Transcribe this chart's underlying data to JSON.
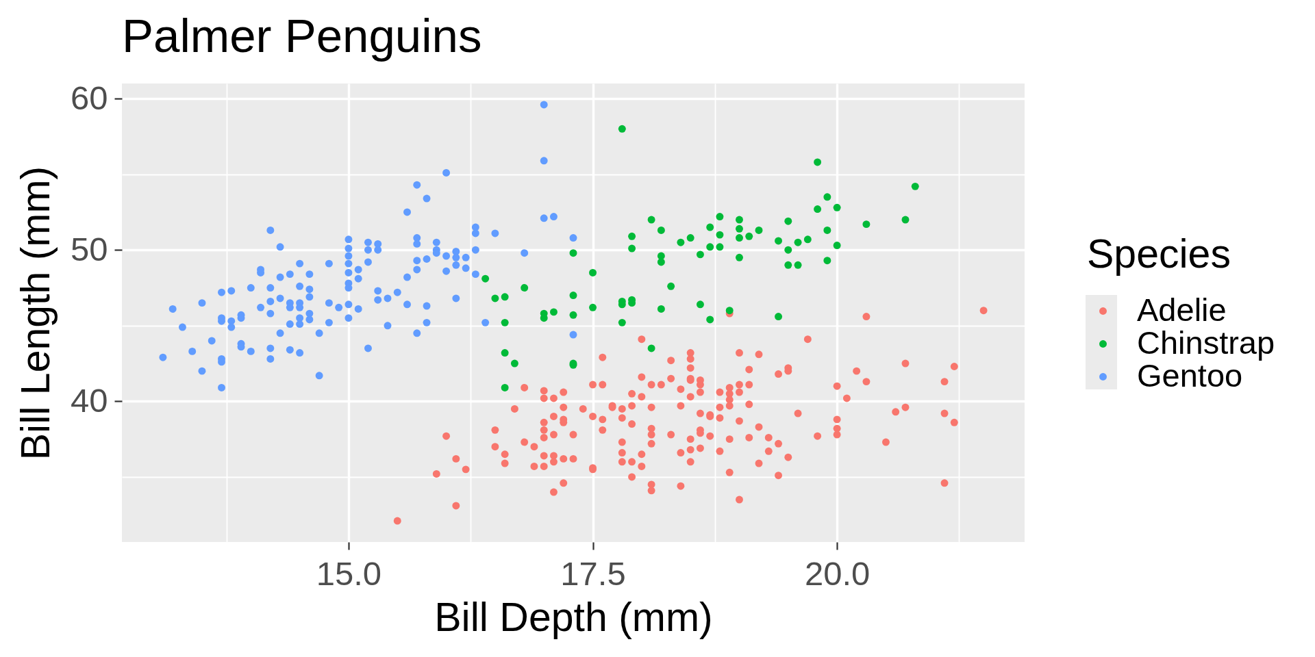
{
  "chart_data": {
    "type": "scatter",
    "title": "Palmer Penguins",
    "xlabel": "Bill Depth (mm)",
    "ylabel": "Bill Length (mm)",
    "legend_title": "Species",
    "xlim": [
      12.68,
      21.92
    ],
    "ylim": [
      30.7,
      61.0
    ],
    "xticks": [
      {
        "value": 13.75,
        "label": null
      },
      {
        "value": 15,
        "label": "15.0"
      },
      {
        "value": 16.25,
        "label": null
      },
      17.5,
      {
        "value": 18.75,
        "label": null
      },
      {
        "value": 20,
        "label": "20.0"
      },
      {
        "value": 21.25,
        "label": null
      }
    ],
    "yticks": [
      {
        "value": 35,
        "label": null
      },
      40,
      {
        "value": 45,
        "label": null
      },
      50,
      {
        "value": 55,
        "label": null
      },
      60
    ],
    "grid": true,
    "legend": "right",
    "marker": "circle",
    "series": [
      {
        "name": "Adelie",
        "color": "#f8766d",
        "x": [
          16.8,
          17.0,
          17.0,
          17.1,
          17.2,
          17.5,
          17.6,
          17.6,
          18.0,
          18.0,
          18.1,
          18.2,
          17.9,
          18.0,
          17.9,
          18.1,
          17.7,
          17.7,
          17.8,
          17.4,
          17.2,
          16.7,
          17.5,
          17.6,
          17.8,
          17.9,
          17.1,
          17.2,
          17.2,
          17.0,
          17.0,
          17.1,
          17.0,
          17.3,
          17.6,
          18.1,
          18.1,
          18.1,
          16.5,
          16.5,
          16.6,
          16.6,
          16.8,
          16.9,
          17.0,
          17.1,
          17.1,
          17.2,
          17.3,
          16.9,
          17.0,
          17.5,
          17.5,
          17.8,
          17.8,
          17.8,
          17.9,
          18.0,
          18.0,
          17.9,
          18.1,
          18.1,
          17.2,
          17.1,
          16.0,
          16.1,
          16.2,
          15.9,
          16.1,
          15.5,
          18.3,
          18.3,
          18.3,
          19.7,
          20.3,
          21.5,
          18.9,
          18.5,
          18.5,
          18.5,
          18.5,
          18.5,
          18.4,
          18.5,
          18.6,
          18.6,
          18.6,
          18.4,
          18.6,
          18.7,
          18.7,
          18.8,
          18.8,
          18.8,
          18.9,
          18.9,
          18.9,
          18.9,
          19.0,
          19.0,
          19.0,
          19.0,
          19.1,
          19.1,
          19.1,
          19.2,
          19.2,
          19.1,
          19.3,
          19.4,
          19.3,
          19.5,
          19.2,
          19.4,
          19.4,
          19.5,
          19.5,
          19.6,
          19.8,
          20.0,
          20.1,
          20.0,
          20.0,
          20.0,
          20.2,
          20.3,
          20.5,
          20.6,
          20.7,
          20.7,
          21.1,
          21.2,
          21.1,
          21.2,
          21.1,
          18.9,
          18.9,
          19.0,
          18.8,
          18.6,
          18.6,
          18.7,
          18.5,
          18.5,
          18.6,
          18.4,
          18.5,
          18.4
        ],
        "values": [
          40.9,
          40.7,
          40.2,
          40.2,
          40.6,
          41.1,
          41.1,
          42.9,
          44.1,
          41.6,
          41.1,
          41.1,
          40.5,
          40.3,
          39.7,
          39.6,
          39.7,
          39.6,
          39.5,
          39.5,
          39.6,
          39.5,
          39.0,
          38.8,
          38.9,
          38.5,
          39.0,
          38.8,
          38.6,
          38.6,
          38.1,
          37.8,
          37.6,
          37.8,
          38.1,
          38.2,
          37.8,
          37.2,
          38.1,
          37.0,
          36.5,
          35.9,
          37.3,
          37.0,
          36.4,
          36.4,
          36.0,
          36.2,
          36.2,
          35.7,
          35.7,
          35.6,
          35.5,
          37.3,
          36.6,
          36.0,
          36.0,
          36.5,
          35.7,
          35.0,
          34.5,
          34.1,
          34.6,
          34.0,
          37.7,
          36.2,
          35.5,
          35.2,
          33.1,
          32.1,
          42.7,
          41.5,
          37.8,
          44.1,
          45.6,
          46.0,
          45.8,
          43.2,
          42.8,
          42.2,
          41.5,
          41.4,
          40.8,
          40.3,
          41.4,
          41.1,
          40.6,
          39.7,
          39.2,
          39.0,
          39.1,
          40.6,
          39.6,
          38.9,
          40.9,
          40.5,
          40.1,
          39.7,
          43.2,
          41.1,
          40.6,
          38.7,
          42.1,
          41.1,
          39.8,
          43.1,
          38.3,
          37.6,
          37.6,
          37.2,
          36.7,
          36.3,
          35.9,
          35.1,
          41.8,
          42.2,
          42.0,
          39.2,
          37.7,
          41.0,
          40.2,
          38.8,
          38.2,
          37.8,
          42.0,
          41.3,
          37.3,
          39.3,
          39.6,
          42.5,
          41.3,
          42.3,
          39.2,
          38.6,
          34.6,
          37.5,
          35.3,
          33.5,
          36.7,
          38.1,
          37.9,
          37.7,
          37.5,
          36.8,
          36.9,
          36.6,
          36.0,
          34.4
        ]
      },
      {
        "name": "Chinstrap",
        "color": "#00ba38",
        "x": [
          17.3,
          16.4,
          16.5,
          16.6,
          16.8,
          17.3,
          17.0,
          17.0,
          17.1,
          17.3,
          16.6,
          16.6,
          16.7,
          17.3,
          17.3,
          16.6,
          17.8,
          19.8,
          20.8,
          19.9,
          19.8,
          20.0,
          20.3,
          20.7,
          18.1,
          18.2,
          17.9,
          17.9,
          18.4,
          18.5,
          18.7,
          18.8,
          18.8,
          18.7,
          18.8,
          18.6,
          18.2,
          18.2,
          19.0,
          19.0,
          19.0,
          19.0,
          19.1,
          19.2,
          19.4,
          19.5,
          19.5,
          19.6,
          19.7,
          19.5,
          19.6,
          19.9,
          19.9,
          20.0,
          17.5,
          18.3,
          17.8,
          17.8,
          17.9,
          17.9,
          18.2,
          17.5,
          17.8,
          18.6,
          18.7,
          18.9,
          19.4,
          18.1
        ],
        "values": [
          49.8,
          48.1,
          46.8,
          46.9,
          47.5,
          47.0,
          45.8,
          45.5,
          45.9,
          45.7,
          45.2,
          43.2,
          42.5,
          42.5,
          42.4,
          40.9,
          58.0,
          55.8,
          54.2,
          53.5,
          52.7,
          52.8,
          51.7,
          52.0,
          52.0,
          51.3,
          50.9,
          50.1,
          50.5,
          50.8,
          51.5,
          52.2,
          51.0,
          50.2,
          50.2,
          49.7,
          49.6,
          49.2,
          52.0,
          51.4,
          50.8,
          49.5,
          50.9,
          51.3,
          50.6,
          51.9,
          50.0,
          50.5,
          50.7,
          49.0,
          49.0,
          51.3,
          49.3,
          50.3,
          48.5,
          47.6,
          46.6,
          46.4,
          46.7,
          46.5,
          46.1,
          46.2,
          45.2,
          46.4,
          45.4,
          46.0,
          45.6,
          43.5
        ]
      },
      {
        "name": "Gentoo",
        "color": "#619cff",
        "x": [
          14.2,
          14.3,
          15.0,
          15.0,
          15.0,
          15.0,
          15.0,
          15.0,
          15.0,
          15.0,
          15.0,
          15.2,
          15.2,
          15.3,
          15.3,
          15.2,
          15.1,
          15.1,
          14.8,
          14.5,
          14.4,
          14.3,
          14.6,
          14.1,
          14.1,
          14.0,
          14.2,
          14.5,
          14.6,
          14.6,
          13.8,
          13.7,
          13.5,
          13.2,
          14.3,
          14.2,
          14.1,
          14.2,
          14.4,
          14.4,
          14.5,
          14.5,
          14.5,
          14.5,
          14.4,
          14.6,
          14.6,
          14.8,
          14.9,
          14.8,
          15.1,
          15.3,
          15.3,
          15.4,
          15.4,
          15.2,
          14.7,
          14.7,
          14.3,
          14.2,
          14.2,
          14.4,
          14.5,
          14.0,
          13.9,
          13.9,
          13.9,
          13.9,
          13.8,
          13.8,
          13.7,
          13.7,
          13.7,
          13.7,
          13.7,
          13.5,
          13.4,
          13.6,
          13.3,
          13.1,
          17.0,
          17.0,
          16.0,
          15.7,
          15.8,
          15.6,
          17.0,
          17.1,
          16.3,
          16.3,
          16.5,
          17.3,
          15.7,
          15.7,
          15.9,
          15.9,
          15.9,
          16.0,
          16.1,
          16.1,
          16.1,
          16.2,
          16.2,
          16.3,
          16.3,
          16.8,
          15.8,
          15.7,
          15.7,
          15.6,
          16.0,
          15.5,
          15.6,
          15.8,
          16.1,
          15.8,
          15.7,
          16.4,
          17.3
        ],
        "values": [
          51.3,
          50.2,
          50.7,
          50.1,
          49.6,
          49.1,
          48.5,
          47.8,
          47.5,
          46.4,
          45.5,
          50.5,
          50.0,
          50.4,
          50.0,
          49.2,
          48.7,
          48.1,
          49.1,
          49.1,
          48.4,
          48.2,
          48.4,
          48.7,
          48.5,
          47.5,
          47.5,
          47.6,
          47.4,
          46.9,
          47.3,
          47.2,
          46.5,
          46.1,
          46.8,
          46.6,
          46.2,
          45.8,
          46.5,
          46.2,
          46.5,
          46.2,
          45.5,
          45.1,
          45.1,
          45.8,
          45.4,
          46.5,
          46.2,
          45.2,
          46.1,
          47.3,
          46.7,
          46.8,
          45.0,
          43.5,
          44.5,
          41.7,
          44.5,
          43.5,
          42.8,
          43.4,
          43.2,
          43.3,
          43.8,
          43.6,
          45.7,
          45.5,
          45.3,
          44.9,
          45.5,
          45.3,
          42.8,
          42.6,
          40.9,
          42.0,
          43.3,
          44.0,
          44.9,
          42.9,
          59.6,
          55.9,
          55.1,
          54.3,
          53.4,
          52.5,
          52.1,
          52.2,
          51.5,
          51.1,
          51.1,
          50.8,
          50.8,
          50.4,
          50.5,
          50.0,
          49.8,
          49.6,
          49.9,
          49.5,
          49.0,
          49.5,
          48.8,
          50.0,
          48.4,
          49.8,
          49.4,
          49.3,
          48.7,
          48.2,
          48.6,
          47.2,
          46.4,
          46.3,
          46.8,
          45.2,
          44.5,
          45.2,
          44.4
        ]
      }
    ]
  }
}
